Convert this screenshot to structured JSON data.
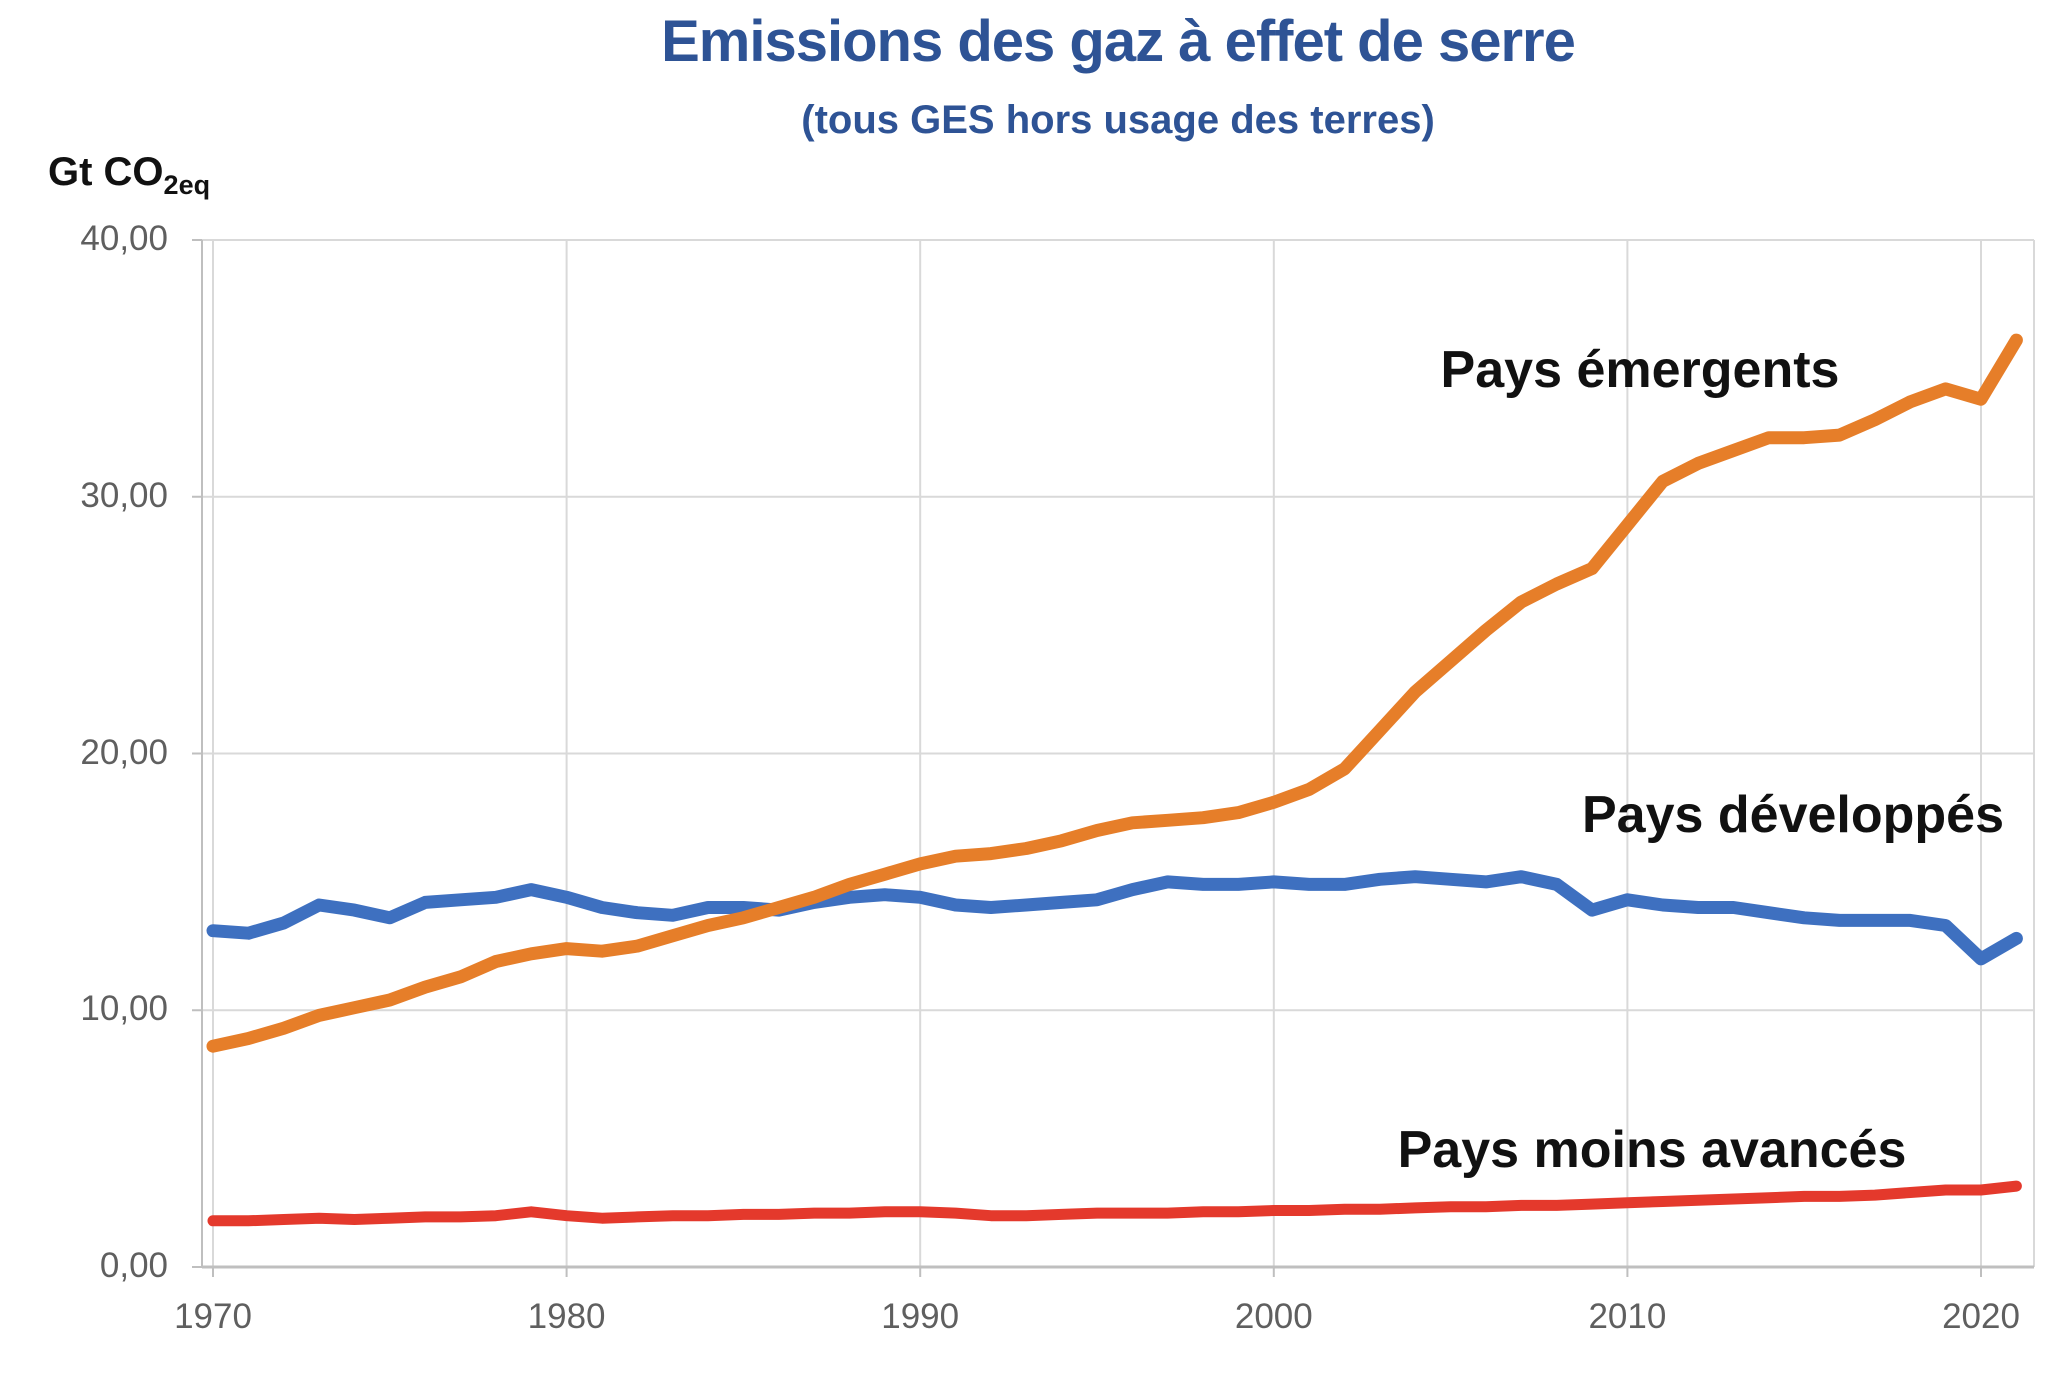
{
  "header": {
    "title": "Emissions des gaz à effet de serre",
    "subtitle": "(tous GES hors usage des terres)",
    "title_color": "#2E5395"
  },
  "chart_data": {
    "type": "line",
    "title": "Emissions des gaz à effet de serre",
    "subtitle": "(tous GES hors usage des terres)",
    "ylabel": {
      "text": "Gt CO",
      "subscript": "2eq"
    },
    "xlabel": "",
    "ylim": [
      0,
      40
    ],
    "xlim": [
      1970,
      2021
    ],
    "grid": true,
    "legend_position": "inline-labels",
    "colors": {
      "grid": "#d9d9d9",
      "axis": "#bfbfbf",
      "tick_text": "#5f5f5f",
      "label_text": "#111111"
    },
    "y_ticks": [
      0,
      10,
      20,
      30,
      40
    ],
    "y_tick_labels": [
      "0,00",
      "10,00",
      "20,00",
      "30,00",
      "40,00"
    ],
    "x_ticks": [
      1970,
      1980,
      1990,
      2000,
      2010,
      2020
    ],
    "x_tick_labels": [
      "1970",
      "1980",
      "1990",
      "2000",
      "2010",
      "2020"
    ],
    "x": [
      1970,
      1971,
      1972,
      1973,
      1974,
      1975,
      1976,
      1977,
      1978,
      1979,
      1980,
      1981,
      1982,
      1983,
      1984,
      1985,
      1986,
      1987,
      1988,
      1989,
      1990,
      1991,
      1992,
      1993,
      1994,
      1995,
      1996,
      1997,
      1998,
      1999,
      2000,
      2001,
      2002,
      2003,
      2004,
      2005,
      2006,
      2007,
      2008,
      2009,
      2010,
      2011,
      2012,
      2013,
      2014,
      2015,
      2016,
      2017,
      2018,
      2019,
      2020,
      2021
    ],
    "series": [
      {
        "name": "Pays développés",
        "color": "#3E70C0",
        "line_width": 13,
        "values": [
          13.1,
          13.0,
          13.4,
          14.1,
          13.9,
          13.6,
          14.2,
          14.3,
          14.4,
          14.7,
          14.4,
          14.0,
          13.8,
          13.7,
          14.0,
          14.0,
          13.9,
          14.2,
          14.4,
          14.5,
          14.4,
          14.1,
          14.0,
          14.1,
          14.2,
          14.3,
          14.7,
          15.0,
          14.9,
          14.9,
          15.0,
          14.9,
          14.9,
          15.1,
          15.2,
          15.1,
          15.0,
          15.2,
          14.9,
          13.9,
          14.3,
          14.1,
          14.0,
          14.0,
          13.8,
          13.6,
          13.5,
          13.5,
          13.5,
          13.3,
          12.0,
          12.8
        ]
      },
      {
        "name": "Pays émergents",
        "color": "#E67E29",
        "line_width": 13,
        "values": [
          8.6,
          8.9,
          9.3,
          9.8,
          10.1,
          10.4,
          10.9,
          11.3,
          11.9,
          12.2,
          12.4,
          12.3,
          12.5,
          12.9,
          13.3,
          13.6,
          14.0,
          14.4,
          14.9,
          15.3,
          15.7,
          16.0,
          16.1,
          16.3,
          16.6,
          17.0,
          17.3,
          17.4,
          17.5,
          17.7,
          18.1,
          18.6,
          19.4,
          20.9,
          22.4,
          23.6,
          24.8,
          25.9,
          26.6,
          27.2,
          28.9,
          30.6,
          31.3,
          31.8,
          32.3,
          32.3,
          32.4,
          33.0,
          33.7,
          34.2,
          33.8,
          36.1
        ]
      },
      {
        "name": "Pays moins avancés",
        "color": "#E4392C",
        "line_width": 11,
        "values": [
          1.8,
          1.8,
          1.85,
          1.9,
          1.85,
          1.9,
          1.95,
          1.95,
          2.0,
          2.15,
          2.0,
          1.9,
          1.95,
          2.0,
          2.0,
          2.05,
          2.05,
          2.1,
          2.1,
          2.15,
          2.15,
          2.1,
          2.0,
          2.0,
          2.05,
          2.1,
          2.1,
          2.1,
          2.15,
          2.15,
          2.2,
          2.2,
          2.25,
          2.25,
          2.3,
          2.35,
          2.35,
          2.4,
          2.4,
          2.45,
          2.5,
          2.55,
          2.6,
          2.65,
          2.7,
          2.75,
          2.75,
          2.8,
          2.9,
          3.0,
          3.0,
          3.15
        ]
      }
    ]
  }
}
